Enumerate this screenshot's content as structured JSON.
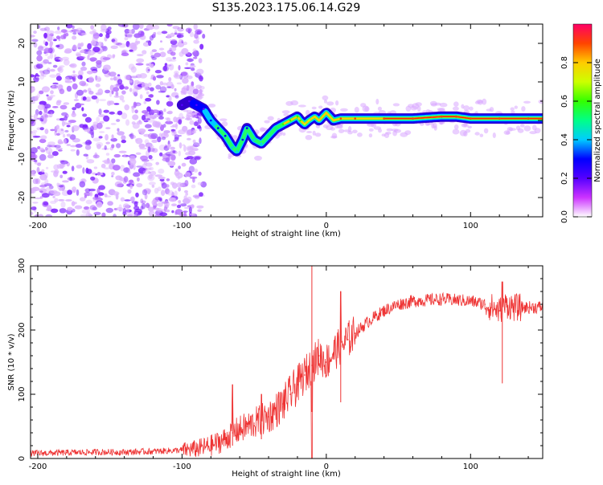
{
  "title": "S135.2023.175.06.14.G29",
  "chart_data": [
    {
      "type": "heatmap",
      "xlabel": "Height of straight line (km)",
      "ylabel": "Frequency (Hz)",
      "xlim": [
        -205,
        150
      ],
      "ylim": [
        -25,
        25
      ],
      "xticks": [
        -200,
        -100,
        0,
        100
      ],
      "yticks": [
        -20,
        -10,
        0,
        10,
        20
      ],
      "colorbar": {
        "label": "Normalized spectral amplitude",
        "range": [
          0,
          1
        ],
        "ticks": [
          "0.0",
          "0.2",
          "0.4",
          "0.6",
          "0.8"
        ],
        "tick_values": [
          0.0,
          0.2,
          0.4,
          0.6,
          0.8
        ],
        "colors": [
          "#ffffff",
          "#cc33ff",
          "#5500ff",
          "#0000ff",
          "#00ccff",
          "#00ff88",
          "#33ff00",
          "#ccff00",
          "#ffcc00",
          "#ff4400",
          "#ff0066"
        ]
      },
      "noise_region_km": [
        -205,
        -85
      ],
      "ridge": {
        "x": [
          -100,
          -95,
          -90,
          -85,
          -80,
          -75,
          -70,
          -65,
          -62,
          -58,
          -55,
          -50,
          -45,
          -40,
          -35,
          -30,
          -25,
          -20,
          -18,
          -15,
          -12,
          -8,
          -5,
          0,
          5,
          10,
          20,
          40,
          60,
          80,
          90,
          100,
          120,
          140,
          150
        ],
        "freq": [
          4,
          5,
          4,
          3,
          0,
          -2,
          -4,
          -7,
          -8,
          -5,
          -2,
          -5,
          -6,
          -4,
          -2,
          -1,
          0,
          1,
          0,
          -1,
          0,
          1,
          0,
          2,
          0,
          0.5,
          0.5,
          0.5,
          0.5,
          1,
          1,
          0.5,
          0.5,
          0.5,
          0.5
        ],
        "amplitude": [
          0.15,
          0.2,
          0.22,
          0.22,
          0.25,
          0.3,
          0.3,
          0.35,
          0.35,
          0.3,
          0.3,
          0.35,
          0.4,
          0.45,
          0.5,
          0.55,
          0.55,
          0.6,
          0.6,
          0.65,
          0.7,
          0.75,
          0.75,
          0.8,
          0.8,
          0.85,
          0.85,
          0.9,
          0.9,
          0.9,
          0.9,
          0.9,
          0.9,
          0.9,
          0.9
        ]
      }
    },
    {
      "type": "line",
      "xlabel": "Height of straight line (km)",
      "ylabel": "SNR (10 * v/v)",
      "xlim": [
        -205,
        150
      ],
      "ylim": [
        0,
        300
      ],
      "xticks": [
        -200,
        -100,
        0,
        100
      ],
      "yticks": [
        0,
        100,
        200,
        300
      ],
      "series": [
        {
          "name": "SNR",
          "color": "#ee3333",
          "x": [
            -205,
            -180,
            -160,
            -140,
            -120,
            -100,
            -90,
            -80,
            -70,
            -65,
            -60,
            -55,
            -50,
            -45,
            -40,
            -35,
            -30,
            -25,
            -20,
            -15,
            -10,
            -5,
            0,
            5,
            10,
            15,
            20,
            25,
            30,
            40,
            50,
            60,
            80,
            100,
            110,
            120,
            125,
            130,
            140,
            150
          ],
          "y": [
            8,
            9,
            10,
            10,
            11,
            13,
            15,
            20,
            30,
            40,
            45,
            50,
            55,
            60,
            65,
            75,
            85,
            100,
            115,
            130,
            145,
            160,
            150,
            165,
            175,
            185,
            195,
            205,
            215,
            230,
            240,
            245,
            248,
            245,
            240,
            230,
            240,
            235,
            235,
            236
          ]
        }
      ],
      "spikes": [
        {
          "x": -65,
          "y": 115
        },
        {
          "x": -45,
          "y": 100
        },
        {
          "x": -10,
          "y": 300
        },
        {
          "x": 10,
          "y": 260
        },
        {
          "x": 122,
          "y": 275
        }
      ]
    }
  ]
}
